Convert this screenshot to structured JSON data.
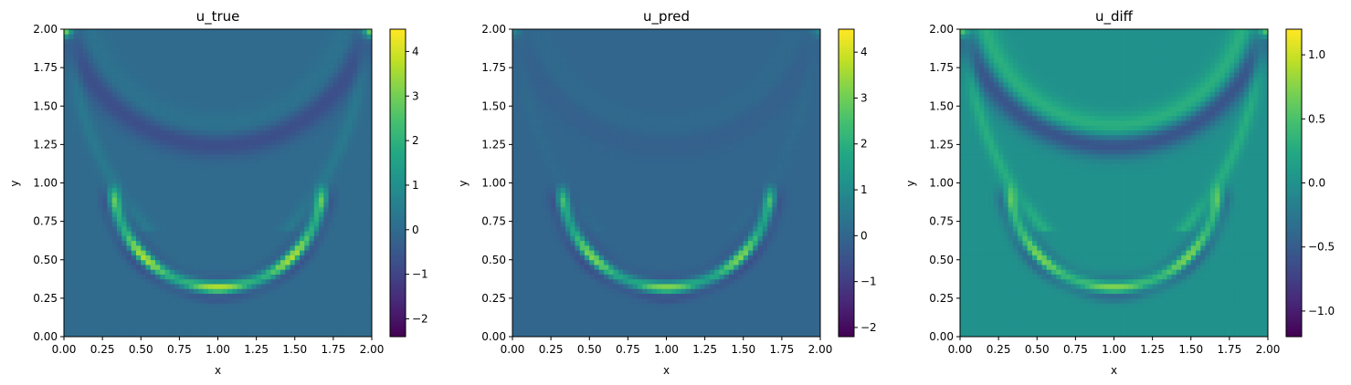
{
  "chart_data": [
    {
      "type": "heatmap",
      "title": "u_true",
      "xlabel": "x",
      "ylabel": "y",
      "xlim": [
        0,
        2
      ],
      "ylim": [
        0,
        2
      ],
      "xticks": [
        "0.00",
        "0.25",
        "0.50",
        "0.75",
        "1.00",
        "1.25",
        "1.50",
        "1.75",
        "2.00"
      ],
      "yticks": [
        "0.00",
        "0.25",
        "0.50",
        "0.75",
        "1.00",
        "1.25",
        "1.50",
        "1.75",
        "2.00"
      ],
      "colormap": "viridis",
      "grid_resolution": 64,
      "background_value": 0.0,
      "colorbar": {
        "vmin": -2.4,
        "vmax": 4.5,
        "ticks": [
          -2,
          -1,
          0,
          1,
          2,
          3,
          4
        ],
        "tick_labels": [
          "−2",
          "−1",
          "0",
          "1",
          "2",
          "3",
          "4"
        ]
      },
      "features": {
        "lower_front": {
          "center": [
            1.0,
            1.0
          ],
          "radius": 0.68,
          "peak": 4.3,
          "trough": -2.2,
          "arc": "lower half",
          "band_width": 0.03
        },
        "upper_front": {
          "center": [
            1.0,
            2.25
          ],
          "radius": 1.0,
          "peak": 0.3,
          "trough": -1.0,
          "band_width": 0.06
        },
        "side_fronts": {
          "radius": 1.95,
          "amplitude": 0.4,
          "band_width": 0.03
        },
        "corner_values": [
          4.0,
          4.0
        ]
      }
    },
    {
      "type": "heatmap",
      "title": "u_pred",
      "xlabel": "x",
      "ylabel": "y",
      "xlim": [
        0,
        2
      ],
      "ylim": [
        0,
        2
      ],
      "xticks": [
        "0.00",
        "0.25",
        "0.50",
        "0.75",
        "1.00",
        "1.25",
        "1.50",
        "1.75",
        "2.00"
      ],
      "yticks": [
        "0.00",
        "0.25",
        "0.50",
        "0.75",
        "1.00",
        "1.25",
        "1.50",
        "1.75",
        "2.00"
      ],
      "colormap": "viridis",
      "grid_resolution": 64,
      "background_value": 0.0,
      "colorbar": {
        "vmin": -2.2,
        "vmax": 4.5,
        "ticks": [
          -2,
          -1,
          0,
          1,
          2,
          3,
          4
        ],
        "tick_labels": [
          "−2",
          "−1",
          "0",
          "1",
          "2",
          "3",
          "4"
        ]
      },
      "features": {
        "lower_front": {
          "center": [
            1.0,
            1.0
          ],
          "radius": 0.68,
          "peak": 3.8,
          "trough": -2.0,
          "arc": "lower half",
          "band_width": 0.03
        },
        "upper_front": {
          "center": [
            1.0,
            2.25
          ],
          "radius": 1.0,
          "peak": 0.1,
          "trough": -0.2,
          "band_width": 0.06
        },
        "side_fronts": {
          "radius": 1.95,
          "amplitude": 0.1,
          "band_width": 0.03
        },
        "corner_values": [
          1.0,
          1.0
        ]
      }
    },
    {
      "type": "heatmap",
      "title": "u_diff",
      "xlabel": "x",
      "ylabel": "y",
      "xlim": [
        0,
        2
      ],
      "ylim": [
        0,
        2
      ],
      "xticks": [
        "0.00",
        "0.25",
        "0.50",
        "0.75",
        "1.00",
        "1.25",
        "1.50",
        "1.75",
        "2.00"
      ],
      "yticks": [
        "0.00",
        "0.25",
        "0.50",
        "0.75",
        "1.00",
        "1.25",
        "1.50",
        "1.75",
        "2.00"
      ],
      "colormap": "viridis",
      "grid_resolution": 64,
      "background_value": 0.0,
      "colorbar": {
        "vmin": -1.2,
        "vmax": 1.2,
        "ticks": [
          -1.0,
          -0.5,
          0.0,
          0.5,
          1.0
        ],
        "tick_labels": [
          "−1.0",
          "−0.5",
          "0.0",
          "0.5",
          "1.0"
        ]
      },
      "features": {
        "lower_front": {
          "center": [
            1.0,
            1.0
          ],
          "radius": 0.68,
          "peak": 1.0,
          "trough": -1.0,
          "arc": "lower half",
          "band_width": 0.03
        },
        "upper_front": {
          "center": [
            1.0,
            2.25
          ],
          "radius": 1.0,
          "peak": 0.4,
          "trough": -0.8,
          "band_width": 0.06
        },
        "side_fronts": {
          "radius": 1.95,
          "amplitude": 0.3,
          "band_width": 0.03
        },
        "corner_values": [
          1.1,
          1.1
        ]
      }
    }
  ]
}
